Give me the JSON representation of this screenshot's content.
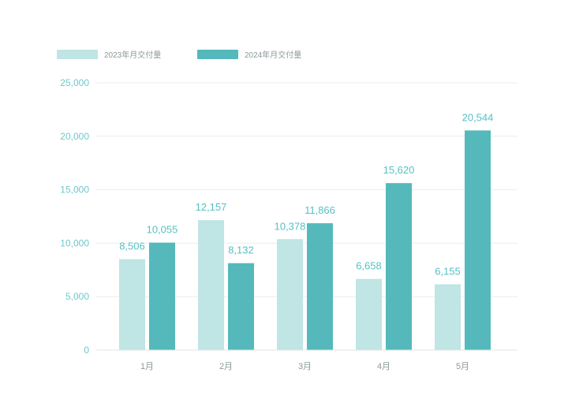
{
  "chart_data": {
    "type": "bar",
    "categories": [
      "1月",
      "2月",
      "3月",
      "4月",
      "5月"
    ],
    "series": [
      {
        "name": "2023年月交付量",
        "values": [
          8506,
          12157,
          10378,
          6658,
          6155
        ],
        "labels": [
          "8,506",
          "12,157",
          "10,378",
          "6,658",
          "6,155"
        ],
        "color": "#bfe5e4"
      },
      {
        "name": "2024年月交付量",
        "values": [
          10055,
          8132,
          11866,
          15620,
          20544
        ],
        "labels": [
          "10,055",
          "8,132",
          "11,866",
          "15,620",
          "20,544"
        ],
        "color": "#55b9bb"
      }
    ],
    "yticks": [
      0,
      5000,
      10000,
      15000,
      20000,
      25000
    ],
    "ytick_labels": [
      "0",
      "5,000",
      "10,000",
      "15,000",
      "20,000",
      "25,000"
    ],
    "ylim": [
      0,
      25000
    ],
    "grid": true,
    "legend_position": "top-left",
    "label_color": "#55c0c4",
    "tick_color": "#6fc8cb",
    "axis_text_color": "#8a9a9a",
    "grid_color": "#e9eeee"
  }
}
